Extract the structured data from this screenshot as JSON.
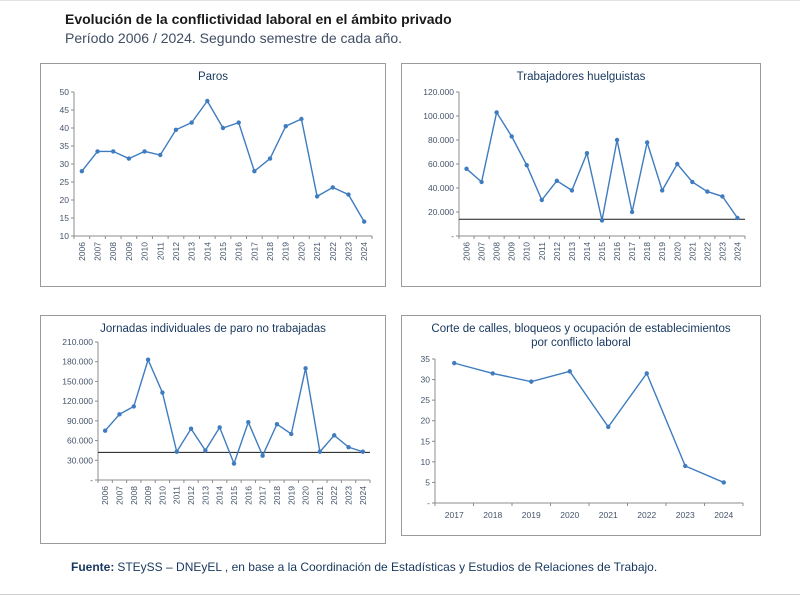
{
  "header": {
    "title": "Evolución de la conflictividad laboral en el ámbito privado",
    "subtitle": "Período 2006 / 2024. Segundo semestre de cada año."
  },
  "footer": {
    "label": "Fuente:",
    "text": "STEySS – DNEyEL , en base a la Coordinación de Estadísticas y Estudios de Relaciones de Trabajo."
  },
  "colors": {
    "series_line": "#3e7cbf",
    "reference_line": "#1a1a1a",
    "chart_title": "#17375e",
    "axis_line": "#8c8c8c",
    "axis_text": "#44546a"
  },
  "chart_data": [
    {
      "type": "line",
      "title": "Paros",
      "categories": [
        "2006",
        "2007",
        "2008",
        "2009",
        "2010",
        "2011",
        "2012",
        "2013",
        "2014",
        "2015",
        "2016",
        "2017",
        "2018",
        "2019",
        "2020",
        "2021",
        "2022",
        "2023",
        "2024"
      ],
      "values": [
        28,
        33.5,
        33.5,
        31.5,
        33.5,
        32.5,
        39.5,
        41.5,
        47.5,
        40,
        41.5,
        28,
        31.5,
        40.5,
        42.5,
        21,
        23.5,
        21.5,
        14
      ],
      "ylim": [
        10,
        50
      ],
      "ytick_labels": [
        "10",
        "15",
        "20",
        "25",
        "30",
        "35",
        "40",
        "45",
        "50"
      ],
      "ref_value": null,
      "grid": false,
      "legend": "none"
    },
    {
      "type": "line",
      "title": "Trabajadores huelguistas",
      "categories": [
        "2006",
        "2007",
        "2008",
        "2009",
        "2010",
        "2011",
        "2012",
        "2013",
        "2014",
        "2015",
        "2016",
        "2017",
        "2018",
        "2019",
        "2020",
        "2021",
        "2022",
        "2023",
        "2024"
      ],
      "values": [
        56000,
        45000,
        103000,
        83000,
        59000,
        30000,
        46000,
        38000,
        69000,
        13000,
        80000,
        20000,
        78000,
        38000,
        60000,
        45000,
        37000,
        33000,
        15000
      ],
      "ylim": [
        0,
        120000
      ],
      "ytick_labels": [
        "-",
        "20.000",
        "40.000",
        "60.000",
        "80.000",
        "100.000",
        "120.000"
      ],
      "ref_value": 14000,
      "grid": false,
      "legend": "none"
    },
    {
      "type": "line",
      "title": "Jornadas individuales de paro no trabajadas",
      "categories": [
        "2006",
        "2007",
        "2008",
        "2009",
        "2010",
        "2011",
        "2012",
        "2013",
        "2014",
        "2015",
        "2016",
        "2017",
        "2018",
        "2019",
        "2020",
        "2021",
        "2022",
        "2023",
        "2024"
      ],
      "values": [
        75000,
        100000,
        112000,
        183000,
        133000,
        43000,
        78000,
        45000,
        80000,
        25000,
        88000,
        37000,
        85000,
        70000,
        170000,
        43000,
        68000,
        50000,
        43000
      ],
      "ylim": [
        0,
        210000
      ],
      "ytick_labels": [
        "-",
        "30.000",
        "60.000",
        "90.000",
        "120.000",
        "150.000",
        "180.000",
        "210.000"
      ],
      "ref_value": 42000,
      "grid": false,
      "legend": "none"
    },
    {
      "type": "line",
      "title": "Corte de calles, bloqueos y ocupación de establecimientos por conflicto laboral",
      "categories": [
        "2017",
        "2018",
        "2019",
        "2020",
        "2021",
        "2022",
        "2023",
        "2024"
      ],
      "values": [
        34,
        31.5,
        29.5,
        32,
        18.5,
        31.5,
        9,
        5
      ],
      "ylim": [
        0,
        35
      ],
      "ytick_labels": [
        "-",
        "5",
        "10",
        "15",
        "20",
        "25",
        "30",
        "35"
      ],
      "ref_value": null,
      "grid": false,
      "legend": "none"
    }
  ]
}
